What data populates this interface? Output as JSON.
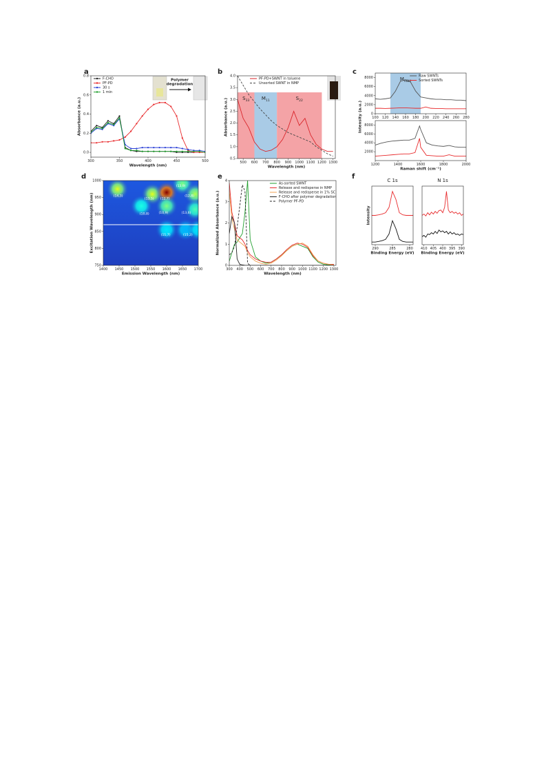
{
  "chart_data": [
    {
      "type": "line",
      "panel": "a",
      "xlabel": "Wavelength (nm)",
      "ylabel": "Absorbance (a.u.)",
      "xlim": [
        300,
        500
      ],
      "xticks": [
        300,
        350,
        400,
        450,
        500
      ],
      "ylim": [
        -0.05,
        0.8
      ],
      "yticks": [
        {
          "value": 0,
          "label": "0.0"
        },
        {
          "value": 0.2,
          "label": "0.2"
        },
        {
          "value": 0.4,
          "label": "0.4"
        },
        {
          "value": 0.6,
          "label": "0.6"
        },
        {
          "value": 0.8,
          "label": "0.8"
        }
      ],
      "legend": "upper left",
      "inset_text": [
        "Polymer",
        "degradation"
      ],
      "x": [
        300,
        310,
        320,
        330,
        340,
        350,
        360,
        370,
        380,
        390,
        400,
        410,
        420,
        430,
        440,
        450,
        460,
        470,
        480,
        490,
        500
      ],
      "series": [
        {
          "name": "F-CHO",
          "color": "#222222",
          "marker": true,
          "values": [
            0.22,
            0.28,
            0.26,
            0.33,
            0.3,
            0.38,
            0.05,
            0.02,
            0.01,
            0.01,
            0.01,
            0.01,
            0.01,
            0.01,
            0.01,
            0.0,
            0.0,
            0.0,
            0.0,
            0.0,
            0.0
          ]
        },
        {
          "name": "PF-PD",
          "color": "#e8292b",
          "marker": true,
          "values": [
            0.1,
            0.1,
            0.11,
            0.11,
            0.12,
            0.13,
            0.16,
            0.22,
            0.3,
            0.38,
            0.45,
            0.5,
            0.52,
            0.52,
            0.48,
            0.38,
            0.15,
            0.02,
            0.0,
            0.0,
            0.0
          ]
        },
        {
          "name": "30 s",
          "color": "#2a3fd6",
          "marker": true,
          "values": [
            0.2,
            0.25,
            0.24,
            0.3,
            0.28,
            0.35,
            0.08,
            0.04,
            0.04,
            0.05,
            0.05,
            0.05,
            0.05,
            0.05,
            0.05,
            0.05,
            0.04,
            0.03,
            0.02,
            0.02,
            0.01
          ]
        },
        {
          "name": "1 min",
          "color": "#1f9e2c",
          "marker": true,
          "values": [
            0.21,
            0.26,
            0.25,
            0.31,
            0.29,
            0.36,
            0.04,
            0.02,
            0.02,
            0.01,
            0.01,
            0.01,
            0.01,
            0.01,
            0.01,
            0.01,
            0.01,
            0.01,
            0.01,
            0.01,
            0.0
          ]
        }
      ]
    },
    {
      "type": "line",
      "panel": "b",
      "xlabel": "Wavelength (nm)",
      "ylabel": "Absorbance (a.u.)",
      "xlim": [
        450,
        1320
      ],
      "xticks": [
        500,
        600,
        700,
        800,
        900,
        1000,
        1100,
        1200,
        1300
      ],
      "ylim": [
        0.5,
        4.0
      ],
      "yticks": [
        0.5,
        {
          "value": 1,
          "label": "1.0"
        },
        1.5,
        {
          "value": 2,
          "label": "2.0"
        },
        2.5,
        {
          "value": 3,
          "label": "3.0"
        },
        3.5,
        {
          "value": 4,
          "label": "4.0"
        }
      ],
      "legend": "upper left",
      "regions": [
        {
          "from": 450,
          "to": 600,
          "ymax": 3.3,
          "color": "#f4a3a6",
          "letter": "S",
          "sub": "33"
        },
        {
          "from": 600,
          "to": 800,
          "ymax": 3.3,
          "color": "#a9cbe6",
          "letter": "M",
          "sub": "11"
        },
        {
          "from": 800,
          "to": 1200,
          "ymax": 3.3,
          "color": "#f4a3a6",
          "letter": "S",
          "sub": "22"
        }
      ],
      "x": [
        450,
        500,
        550,
        600,
        650,
        700,
        750,
        800,
        850,
        900,
        950,
        1000,
        1050,
        1100,
        1150,
        1200,
        1250,
        1300
      ],
      "series": [
        {
          "name": "PF-PD+SWNT in toluene",
          "color": "#d9252b",
          "values": [
            3.0,
            2.2,
            1.8,
            1.2,
            0.9,
            0.8,
            0.85,
            1.0,
            1.3,
            1.8,
            2.5,
            1.9,
            2.2,
            1.5,
            1.1,
            0.9,
            0.8,
            0.8
          ]
        },
        {
          "name": "Unsorted SWNT in NMP",
          "color": "#444444",
          "dash": true,
          "values": [
            4.0,
            3.6,
            3.2,
            2.9,
            2.6,
            2.35,
            2.1,
            1.9,
            1.75,
            1.6,
            1.5,
            1.4,
            1.3,
            1.2,
            1.0,
            0.85,
            0.7,
            0.6
          ]
        }
      ]
    },
    {
      "type": "line",
      "panel": "c",
      "ylabel": "Intensity (a.u.)",
      "xlim": [
        100,
        280
      ],
      "xticks": [
        100,
        120,
        140,
        160,
        180,
        200,
        220,
        240,
        260,
        280
      ],
      "ylim": [
        0,
        9000
      ],
      "yticks": [
        0,
        2000,
        4000,
        6000,
        8000
      ],
      "legend": "upper right",
      "regions": [
        {
          "from": 130,
          "to": 190,
          "color": "#a9cbe6",
          "letter": "M",
          "sub": "RBM"
        }
      ],
      "x": [
        100,
        110,
        120,
        130,
        140,
        150,
        160,
        170,
        180,
        190,
        200,
        210,
        220,
        230,
        240,
        250,
        260,
        270,
        280
      ],
      "series": [
        {
          "name": "Raw SWNTs",
          "color": "#555555",
          "values": [
            3300,
            3200,
            3300,
            3500,
            5000,
            7200,
            7500,
            7000,
            5000,
            3700,
            3500,
            3300,
            3200,
            3200,
            3100,
            3100,
            3000,
            3000,
            2900
          ]
        },
        {
          "name": "Sorted SWNTs",
          "color": "#e8292b",
          "values": [
            1200,
            1200,
            1150,
            1200,
            1250,
            1300,
            1300,
            1250,
            1200,
            1200,
            1500,
            1200,
            1150,
            1150,
            1100,
            1100,
            1100,
            1100,
            1100
          ]
        }
      ]
    },
    {
      "type": "line",
      "xlabel": "Raman shift (cm⁻¹)",
      "xlim": [
        1200,
        2000
      ],
      "xticks": [
        1200,
        1400,
        1600,
        1800,
        2000
      ],
      "ylim": [
        0,
        9000
      ],
      "yticks": [
        2000,
        4000,
        6000,
        8000
      ],
      "x": [
        1200,
        1250,
        1300,
        1350,
        1400,
        1450,
        1500,
        1550,
        1590,
        1600,
        1650,
        1700,
        1750,
        1800,
        1850,
        1900,
        1950,
        2000
      ],
      "series": [
        {
          "color": "#555555",
          "values": [
            3500,
            3900,
            4200,
            4400,
            4500,
            4600,
            4600,
            5000,
            7800,
            7000,
            4000,
            3500,
            3300,
            3200,
            3400,
            3100,
            3000,
            3000
          ]
        },
        {
          "color": "#e8292b",
          "values": [
            1000,
            1100,
            1200,
            1300,
            1400,
            1500,
            1500,
            1800,
            5000,
            3000,
            1200,
            1100,
            1000,
            1000,
            1300,
            1000,
            1000,
            1000
          ]
        }
      ]
    },
    {
      "type": "heatmap",
      "panel": "d",
      "xlabel": "Emission Wavelength (nm)",
      "ylabel": "Excitation Wavelength (nm)",
      "xlim": [
        1400,
        1700
      ],
      "xticks": [
        1400,
        1450,
        1500,
        1550,
        1600,
        1650,
        1700
      ],
      "ylim": [
        750,
        1000
      ],
      "yticks": [
        750,
        800,
        850,
        900,
        950,
        1000
      ],
      "reference_line": 870,
      "spots": [
        {
          "x": 1445,
          "y": 975,
          "value": 0.6
        },
        {
          "x": 1555,
          "y": 960,
          "value": 0.6
        },
        {
          "x": 1600,
          "y": 965,
          "value": 1.0
        },
        {
          "x": 1650,
          "y": 990,
          "value": 0.5
        },
        {
          "x": 1690,
          "y": 960,
          "value": 0.55
        },
        {
          "x": 1520,
          "y": 925,
          "value": 0.4
        },
        {
          "x": 1600,
          "y": 925,
          "value": 0.5
        },
        {
          "x": 1690,
          "y": 915,
          "value": 0.45
        },
        {
          "x": 1600,
          "y": 855,
          "value": 0.35
        },
        {
          "x": 1660,
          "y": 855,
          "value": 0.3
        },
        {
          "x": 1700,
          "y": 855,
          "value": 0.35
        }
      ],
      "annotations": [
        {
          "text": "(13,9)",
          "x": 1645,
          "y": 985
        },
        {
          "text": "(14,3)",
          "x": 1447,
          "y": 955
        },
        {
          "text": "(13,5)",
          "x": 1545,
          "y": 947
        },
        {
          "text": "(12,7)",
          "x": 1595,
          "y": 947
        },
        {
          "text": "(12,8)",
          "x": 1672,
          "y": 955
        },
        {
          "text": "(10,8)",
          "x": 1530,
          "y": 902
        },
        {
          "text": "(10,9)",
          "x": 1590,
          "y": 905
        },
        {
          "text": "(13,6)",
          "x": 1662,
          "y": 905
        },
        {
          "text": "(11,7)",
          "x": 1597,
          "y": 840
        },
        {
          "text": "(15,2)",
          "x": 1667,
          "y": 840
        }
      ]
    },
    {
      "type": "line",
      "panel": "e",
      "xlabel": "Wavelength (nm)",
      "ylabel": "Normalized Absorbance (a.u.)",
      "xlim": [
        300,
        1320
      ],
      "xticks": [
        300,
        400,
        500,
        600,
        700,
        800,
        900,
        1000,
        1100,
        1200,
        1300
      ],
      "ylim": [
        0,
        4
      ],
      "yticks": [
        0,
        1,
        2,
        3,
        4
      ],
      "legend": "upper right",
      "x": [
        300,
        325,
        350,
        375,
        400,
        425,
        450,
        475,
        500,
        550,
        600,
        650,
        700,
        750,
        800,
        850,
        900,
        950,
        1000,
        1050,
        1100,
        1150,
        1200,
        1250,
        1300
      ],
      "series": [
        {
          "name": "As-sorted SWNT",
          "color": "#1f9e2c",
          "values": [
            0.2,
            0.6,
            1.0,
            1.1,
            1.3,
            1.5,
            2.5,
            4.0,
            1.2,
            0.4,
            0.2,
            0.1,
            0.15,
            0.3,
            0.5,
            0.7,
            0.9,
            1.0,
            0.9,
            0.8,
            0.4,
            0.15,
            0.05,
            0.02,
            0.0
          ]
        },
        {
          "name": "Release and redisperse in NMP",
          "color": "#e8292b",
          "values": [
            3.9,
            2.5,
            2.0,
            1.4,
            1.3,
            1.2,
            1.0,
            0.7,
            0.5,
            0.3,
            0.2,
            0.15,
            0.15,
            0.3,
            0.5,
            0.75,
            0.95,
            1.05,
            1.0,
            0.85,
            0.45,
            0.2,
            0.1,
            0.05,
            0.05
          ]
        },
        {
          "name": "Release and redisperse in 1% SC",
          "color": "#f0a050",
          "values": [
            3.5,
            2.2,
            1.7,
            1.2,
            1.1,
            1.0,
            0.9,
            0.6,
            0.4,
            0.2,
            0.1,
            0.05,
            0.1,
            0.25,
            0.45,
            0.7,
            0.9,
            1.0,
            1.05,
            0.9,
            0.5,
            0.2,
            0.1,
            0.05,
            0.02
          ]
        },
        {
          "name": "F-CHO after polymer degradation",
          "color": "#222222",
          "values": [
            1.5,
            2.3,
            2.0,
            0.3,
            0.05,
            0.02,
            0.0,
            0.0,
            0.0,
            0.0,
            0.0,
            0.0,
            0.0,
            0.0,
            0.0,
            0.0,
            0.0,
            0.0,
            0.0,
            0.0,
            0.0,
            0.0,
            0.0,
            0.0,
            0.0
          ]
        },
        {
          "name": "Polymer PF-PD",
          "color": "#222222",
          "dash": true,
          "values": [
            0.5,
            0.6,
            0.9,
            1.8,
            2.8,
            3.8,
            3.5,
            0.1,
            0.0,
            0.0,
            0.0,
            0.0,
            0.0,
            0.0,
            0.0,
            0.0,
            0.0,
            0.0,
            0.0,
            0.0,
            0.0,
            0.0,
            0.0,
            0.0,
            0.0
          ]
        }
      ]
    },
    {
      "type": "line",
      "panel": "f",
      "title": "C 1s",
      "xlabel": "Binding Energy (eV)",
      "ylabel": "Intensity",
      "xlim": [
        291,
        279
      ],
      "xticks": [
        290,
        285,
        280
      ],
      "ylim": [
        -0.1,
        2.1
      ],
      "x": [
        291,
        290,
        289,
        288,
        287,
        286,
        285,
        284,
        283,
        282,
        281,
        280,
        279
      ],
      "series": [
        {
          "color": "#e8292b",
          "values": [
            1.0,
            1.0,
            1.02,
            1.05,
            1.1,
            1.3,
            1.9,
            1.6,
            1.1,
            1.02,
            1.0,
            1.0,
            1.0
          ]
        },
        {
          "color": "#111111",
          "values": [
            0.0,
            0.0,
            0.02,
            0.05,
            0.1,
            0.3,
            0.8,
            0.5,
            0.1,
            0.02,
            0.0,
            0.0,
            0.0
          ]
        }
      ]
    },
    {
      "type": "line",
      "title": "N 1s",
      "xlabel": "Binding Energy (eV)",
      "xlim": [
        411,
        389
      ],
      "xticks": [
        410,
        405,
        400,
        395,
        390
      ],
      "ylim": [
        -0.1,
        2.1
      ],
      "x": [
        411,
        410,
        409,
        408,
        407,
        406,
        405,
        404,
        403,
        402,
        401,
        400,
        399,
        398,
        397,
        396,
        395,
        394,
        393,
        392,
        391,
        390,
        389
      ],
      "series": [
        {
          "color": "#e8292b",
          "values": [
            1.0,
            1.05,
            0.98,
            1.1,
            1.02,
            1.12,
            1.05,
            1.15,
            1.08,
            1.18,
            1.2,
            1.1,
            1.3,
            1.9,
            1.2,
            1.1,
            1.15,
            1.08,
            1.12,
            1.05,
            1.1,
            1.0,
            1.05
          ]
        },
        {
          "color": "#111111",
          "values": [
            0.2,
            0.25,
            0.18,
            0.3,
            0.28,
            0.35,
            0.3,
            0.4,
            0.32,
            0.45,
            0.38,
            0.42,
            0.35,
            0.4,
            0.3,
            0.38,
            0.3,
            0.35,
            0.28,
            0.3,
            0.25,
            0.3,
            0.28
          ]
        }
      ]
    }
  ]
}
